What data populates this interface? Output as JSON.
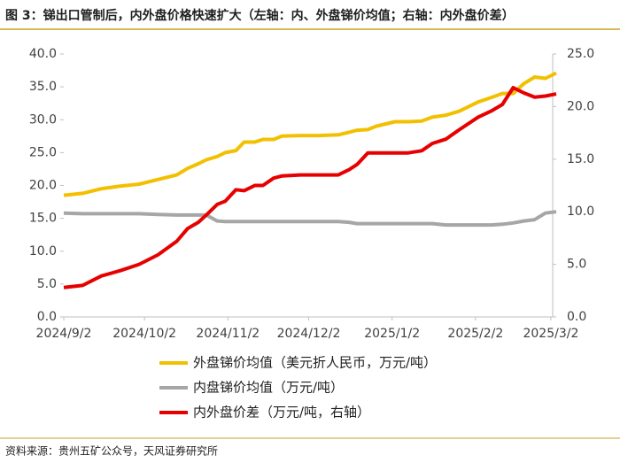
{
  "chart_data": {
    "type": "line",
    "title": "图 3：锑出口管制后，内外盘价格快速扩大（左轴：内、外盘锑价均值；右轴：内外盘价差）",
    "source": "资料来源：贵州五矿公众号，天风证券研究所",
    "x": [
      "2024/9/2",
      "2024/9/9",
      "2024/9/16",
      "2024/9/23",
      "2024/9/30",
      "2024/10/7",
      "2024/10/14",
      "2024/10/18",
      "2024/10/22",
      "2024/10/25",
      "2024/10/29",
      "2024/11/1",
      "2024/11/5",
      "2024/11/8",
      "2024/11/12",
      "2024/11/15",
      "2024/11/19",
      "2024/11/22",
      "2024/11/29",
      "2024/12/6",
      "2024/12/13",
      "2024/12/17",
      "2024/12/20",
      "2024/12/24",
      "2024/12/27",
      "2025/1/3",
      "2025/1/8",
      "2025/1/13",
      "2025/1/17",
      "2025/1/22",
      "2025/1/27",
      "2025/2/3",
      "2025/2/8",
      "2025/2/12",
      "2025/2/16",
      "2025/2/20",
      "2025/2/24",
      "2025/2/28",
      "2025/3/4"
    ],
    "series": [
      {
        "name": "外盘锑价均值（美元折人民币，万元/吨）",
        "color": "#f2c000",
        "values": [
          18.5,
          18.8,
          19.5,
          19.9,
          20.2,
          20.9,
          21.6,
          22.6,
          23.3,
          23.9,
          24.4,
          25.0,
          25.3,
          26.6,
          26.6,
          27.0,
          27.0,
          27.5,
          27.6,
          27.6,
          27.7,
          28.1,
          28.4,
          28.5,
          29.0,
          29.7,
          29.7,
          29.8,
          30.4,
          30.7,
          31.3,
          32.7,
          33.4,
          34.0,
          34.0,
          35.5,
          36.5,
          36.3,
          37.1
        ]
      },
      {
        "name": "内盘锑价均值（万元/吨）",
        "color": "#a6a6a6",
        "values": [
          15.8,
          15.7,
          15.7,
          15.7,
          15.7,
          15.6,
          15.5,
          15.5,
          15.5,
          15.5,
          14.6,
          14.5,
          14.5,
          14.5,
          14.5,
          14.5,
          14.5,
          14.5,
          14.5,
          14.5,
          14.5,
          14.4,
          14.2,
          14.2,
          14.2,
          14.2,
          14.2,
          14.2,
          14.2,
          14.0,
          14.0,
          14.0,
          14.0,
          14.1,
          14.3,
          14.6,
          14.8,
          15.8,
          16.0
        ]
      },
      {
        "name": "内外盘价差（万元/吨，右轴）",
        "color": "#e60000",
        "axis": "y2",
        "values": [
          2.8,
          3.0,
          3.9,
          4.4,
          5.0,
          5.9,
          7.2,
          8.4,
          9.0,
          9.7,
          10.7,
          11.0,
          12.1,
          12.0,
          12.5,
          12.5,
          13.2,
          13.4,
          13.5,
          13.5,
          13.5,
          14.0,
          14.5,
          15.6,
          15.6,
          15.6,
          15.6,
          15.8,
          16.5,
          16.9,
          17.8,
          19.0,
          19.6,
          20.2,
          21.8,
          21.3,
          20.9,
          21.0,
          21.2
        ]
      }
    ],
    "xlim": [
      "2024/9/2",
      "2025/3/4"
    ],
    "xticks": [
      "2024/9/2",
      "2024/10/2",
      "2024/11/2",
      "2024/12/2",
      "2025/1/2",
      "2025/2/2",
      "2025/3/2"
    ],
    "ylim": [
      0,
      40
    ],
    "yticks": [
      {
        "value": 0,
        "label": "0.0"
      },
      {
        "value": 5,
        "label": "5.0"
      },
      {
        "value": 10,
        "label": "10.0"
      },
      {
        "value": 15,
        "label": "15.0"
      },
      {
        "value": 20,
        "label": "20.0"
      },
      {
        "value": 25,
        "label": "25.0"
      },
      {
        "value": 30,
        "label": "30.0"
      },
      {
        "value": 35,
        "label": "35.0"
      },
      {
        "value": 40,
        "label": "40.0"
      }
    ],
    "y2lim": [
      0,
      25
    ],
    "y2ticks": [
      {
        "value": 0,
        "label": "0.0"
      },
      {
        "value": 5,
        "label": "5.0"
      },
      {
        "value": 10,
        "label": "10.0"
      },
      {
        "value": 15,
        "label": "15.0"
      },
      {
        "value": 20,
        "label": "20.0"
      },
      {
        "value": 25,
        "label": "25.0"
      }
    ]
  }
}
